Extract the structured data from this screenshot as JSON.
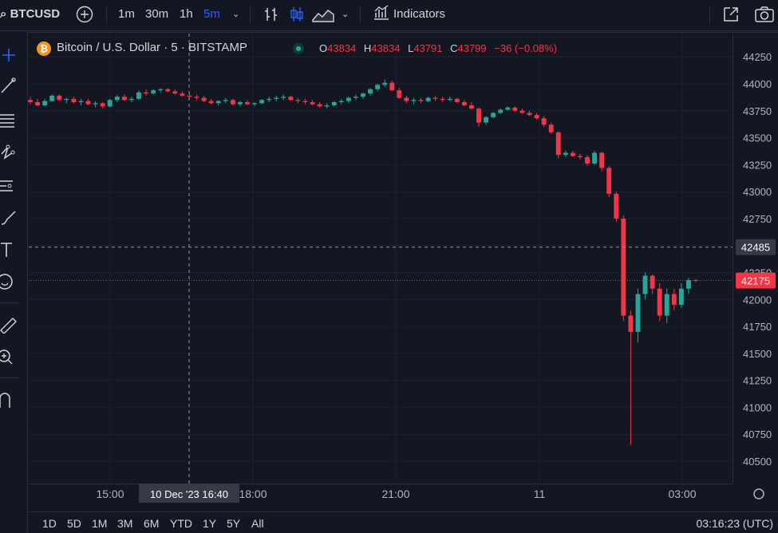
{
  "header": {
    "symbol": "BTCUSD",
    "intervals": [
      "1m",
      "30m",
      "1h",
      "5m"
    ],
    "active_interval": "5m",
    "indicators_label": "Indicators"
  },
  "legend": {
    "title": "Bitcoin / U.S. Dollar · 5 · BITSTAMP",
    "logo": "₿",
    "open_label": "O",
    "open": "43834",
    "high_label": "H",
    "high": "43834",
    "low_label": "L",
    "low": "43791",
    "close_label": "C",
    "close": "43799",
    "change": "−36 (−0.08%)"
  },
  "colors": {
    "background": "#131722",
    "up": "#26a69a",
    "down": "#f23645",
    "grid": "#1e222d",
    "text": "#d1d4dc",
    "accent": "#2962ff"
  },
  "crosshair_price": "42485",
  "crosshair_time": "10 Dec '23   16:40",
  "last_price": "42175",
  "time_ranges": [
    "1D",
    "5D",
    "1M",
    "3M",
    "6M",
    "YTD",
    "1Y",
    "5Y",
    "All"
  ],
  "clock": "03:16:23 (UTC)",
  "toolbar_icons": [
    "crosshair-icon",
    "trend-line-icon",
    "fib-icon",
    "pattern-icon",
    "prediction-icon",
    "brush-icon",
    "text-icon",
    "emoji-icon",
    "ruler-icon",
    "zoom-icon",
    "magnet-icon"
  ],
  "chart_data": {
    "type": "candlestick",
    "title": "Bitcoin / U.S. Dollar · 5 · BITSTAMP",
    "y_ticks": [
      44250,
      44000,
      43750,
      43500,
      43250,
      43000,
      42750,
      42500,
      42250,
      42000,
      41750,
      41500,
      41250,
      41000,
      40750,
      40500
    ],
    "x_ticks": [
      "15:00",
      "18:00",
      "21:00",
      "11",
      "03:00"
    ],
    "ylim": [
      40350,
      44370
    ],
    "grid": true,
    "candles_ohlc_approx": [
      [
        43850,
        43880,
        43810,
        43830
      ],
      [
        43830,
        43860,
        43790,
        43800
      ],
      [
        43800,
        43860,
        43790,
        43840
      ],
      [
        43840,
        43900,
        43830,
        43890
      ],
      [
        43890,
        43900,
        43840,
        43850
      ],
      [
        43850,
        43870,
        43820,
        43860
      ],
      [
        43860,
        43880,
        43820,
        43830
      ],
      [
        43830,
        43860,
        43800,
        43840
      ],
      [
        43840,
        43860,
        43800,
        43810
      ],
      [
        43810,
        43840,
        43780,
        43820
      ],
      [
        43820,
        43830,
        43770,
        43790
      ],
      [
        43790,
        43860,
        43780,
        43850
      ],
      [
        43850,
        43900,
        43830,
        43880
      ],
      [
        43880,
        43900,
        43840,
        43850
      ],
      [
        43850,
        43880,
        43830,
        43860
      ],
      [
        43860,
        43940,
        43850,
        43920
      ],
      [
        43920,
        43950,
        43890,
        43910
      ],
      [
        43910,
        43950,
        43900,
        43940
      ],
      [
        43940,
        43960,
        43920,
        43950
      ],
      [
        43950,
        43960,
        43920,
        43930
      ],
      [
        43930,
        43950,
        43900,
        43910
      ],
      [
        43910,
        43930,
        43880,
        43890
      ],
      [
        43890,
        43910,
        43860,
        43880
      ],
      [
        43880,
        43900,
        43850,
        43870
      ],
      [
        43870,
        43890,
        43830,
        43840
      ],
      [
        43840,
        43860,
        43810,
        43820
      ],
      [
        43820,
        43850,
        43800,
        43840
      ],
      [
        43840,
        43870,
        43820,
        43850
      ],
      [
        43850,
        43860,
        43800,
        43810
      ],
      [
        43810,
        43840,
        43790,
        43830
      ],
      [
        43830,
        43850,
        43800,
        43810
      ],
      [
        43810,
        43830,
        43790,
        43820
      ],
      [
        43820,
        43860,
        43810,
        43850
      ],
      [
        43850,
        43880,
        43830,
        43860
      ],
      [
        43860,
        43890,
        43840,
        43870
      ],
      [
        43870,
        43900,
        43850,
        43880
      ],
      [
        43880,
        43890,
        43840,
        43850
      ],
      [
        43850,
        43870,
        43820,
        43840
      ],
      [
        43840,
        43860,
        43810,
        43830
      ],
      [
        43830,
        43850,
        43800,
        43810
      ],
      [
        43810,
        43830,
        43780,
        43790
      ],
      [
        43790,
        43820,
        43770,
        43800
      ],
      [
        43800,
        43840,
        43790,
        43830
      ],
      [
        43830,
        43860,
        43810,
        43840
      ],
      [
        43840,
        43880,
        43820,
        43870
      ],
      [
        43870,
        43900,
        43850,
        43880
      ],
      [
        43880,
        43920,
        43860,
        43910
      ],
      [
        43910,
        43960,
        43890,
        43950
      ],
      [
        43950,
        44000,
        43930,
        43990
      ],
      [
        43990,
        44040,
        43970,
        44010
      ],
      [
        44010,
        44030,
        43930,
        43940
      ],
      [
        43940,
        43960,
        43860,
        43870
      ],
      [
        43870,
        43890,
        43820,
        43840
      ],
      [
        43840,
        43870,
        43810,
        43850
      ],
      [
        43850,
        43870,
        43820,
        43840
      ],
      [
        43840,
        43880,
        43830,
        43870
      ],
      [
        43870,
        43890,
        43840,
        43860
      ],
      [
        43860,
        43880,
        43830,
        43850
      ],
      [
        43850,
        43880,
        43840,
        43860
      ],
      [
        43860,
        43870,
        43820,
        43830
      ],
      [
        43830,
        43850,
        43790,
        43800
      ],
      [
        43800,
        43830,
        43760,
        43770
      ],
      [
        43770,
        43780,
        43600,
        43640
      ],
      [
        43640,
        43700,
        43620,
        43690
      ],
      [
        43690,
        43740,
        43680,
        43730
      ],
      [
        43730,
        43770,
        43720,
        43760
      ],
      [
        43760,
        43790,
        43750,
        43780
      ],
      [
        43780,
        43790,
        43740,
        43750
      ],
      [
        43750,
        43770,
        43720,
        43730
      ],
      [
        43730,
        43750,
        43700,
        43710
      ],
      [
        43710,
        43730,
        43670,
        43680
      ],
      [
        43680,
        43700,
        43600,
        43620
      ],
      [
        43620,
        43640,
        43530,
        43550
      ],
      [
        43550,
        43560,
        43310,
        43340
      ],
      [
        43340,
        43380,
        43320,
        43360
      ],
      [
        43360,
        43380,
        43320,
        43330
      ],
      [
        43330,
        43350,
        43300,
        43320
      ],
      [
        43320,
        43340,
        43240,
        43260
      ],
      [
        43260,
        43380,
        43250,
        43360
      ],
      [
        43360,
        43370,
        43190,
        43220
      ],
      [
        43220,
        43240,
        42950,
        42980
      ],
      [
        42980,
        43000,
        42720,
        42750
      ],
      [
        42750,
        42780,
        41800,
        41850
      ],
      [
        41850,
        41900,
        40650,
        41700
      ],
      [
        41700,
        42100,
        41600,
        42050
      ],
      [
        42050,
        42250,
        42000,
        42220
      ],
      [
        42220,
        42230,
        42050,
        42100
      ],
      [
        42100,
        42150,
        41800,
        41850
      ],
      [
        41850,
        42100,
        41780,
        42050
      ],
      [
        42050,
        42100,
        41900,
        41950
      ],
      [
        41950,
        42150,
        41920,
        42100
      ],
      [
        42100,
        42200,
        42050,
        42180
      ],
      [
        42180,
        42190,
        42160,
        42175
      ]
    ]
  }
}
